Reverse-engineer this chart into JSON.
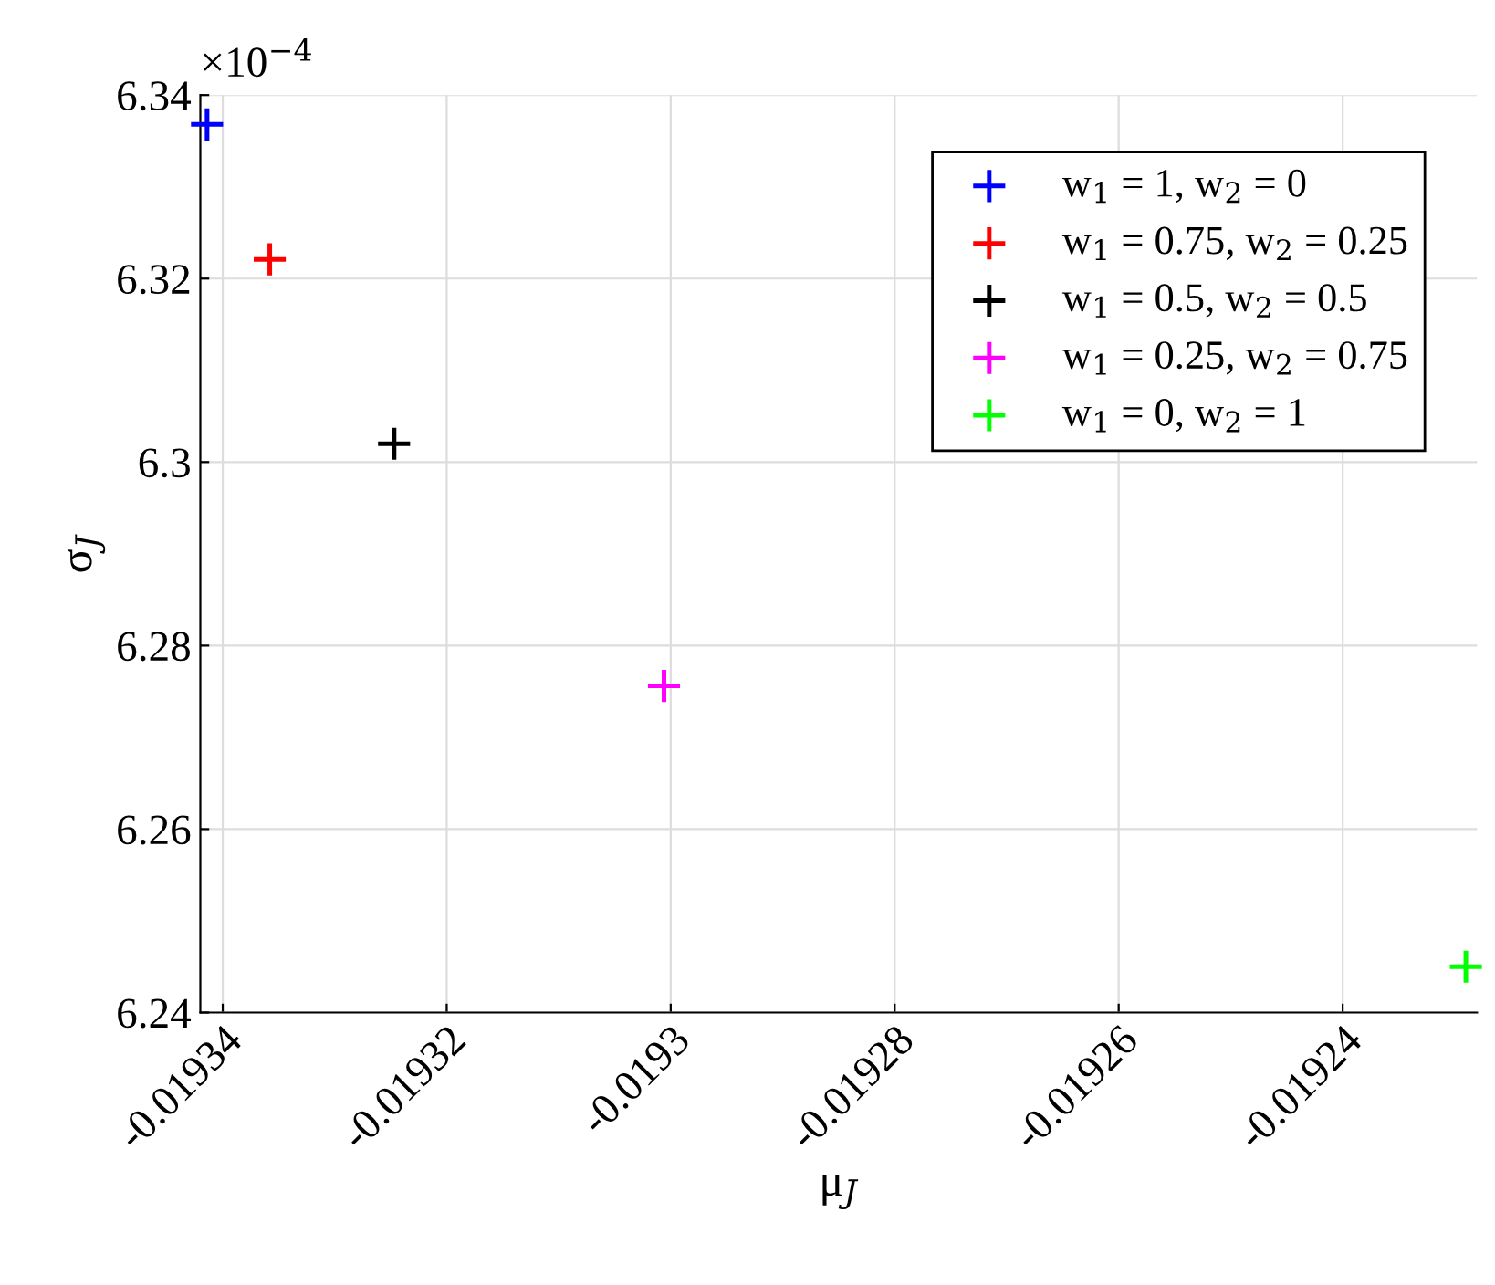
{
  "chart_data": {
    "type": "scatter",
    "xlabel": "μ$_{J}$",
    "ylabel": "σ$_{J}$",
    "annotations": [
      "×10$^{−4}$"
    ],
    "series": [
      {
        "name": "w$_{1}$ = 1, w$_{2}$ = 0",
        "color": "#0000ff",
        "x": [
          -0.0193414
        ],
        "values": [
          6.3368
        ]
      },
      {
        "name": "w$_{1}$ = 0.75, w$_{2}$ = 0.25",
        "color": "#ff0000",
        "x": [
          -0.0193358
        ],
        "values": [
          6.3221
        ]
      },
      {
        "name": "w$_{1}$ = 0.5, w$_{2}$ = 0.5",
        "color": "#000000",
        "x": [
          -0.0193247
        ],
        "values": [
          6.302
        ]
      },
      {
        "name": "w$_{1}$ = 0.25, w$_{2}$ = 0.75",
        "color": "#ff00ff",
        "x": [
          -0.0193006
        ],
        "values": [
          6.2756
        ]
      },
      {
        "name": "w$_{1}$ = 0, w$_{2}$ = 1",
        "color": "#00ff00",
        "x": [
          -0.019229
        ],
        "values": [
          6.245
        ]
      }
    ],
    "xlim": [
      -0.019342,
      -0.019228
    ],
    "xticks": [
      {
        "value": -0.01934,
        "label": "-0.01934"
      },
      {
        "value": -0.01932,
        "label": "-0.01932"
      },
      {
        "value": -0.0193,
        "label": "-0.0193"
      },
      {
        "value": -0.01928,
        "label": "-0.01928"
      },
      {
        "value": -0.01926,
        "label": "-0.01926"
      },
      {
        "value": -0.01924,
        "label": "-0.01924"
      }
    ],
    "ylim": [
      6.24,
      6.34
    ],
    "yticks": [
      6.24,
      6.26,
      6.28,
      6.3,
      6.32,
      6.34
    ],
    "grid": true,
    "legend": "top right",
    "marker": "cross"
  }
}
